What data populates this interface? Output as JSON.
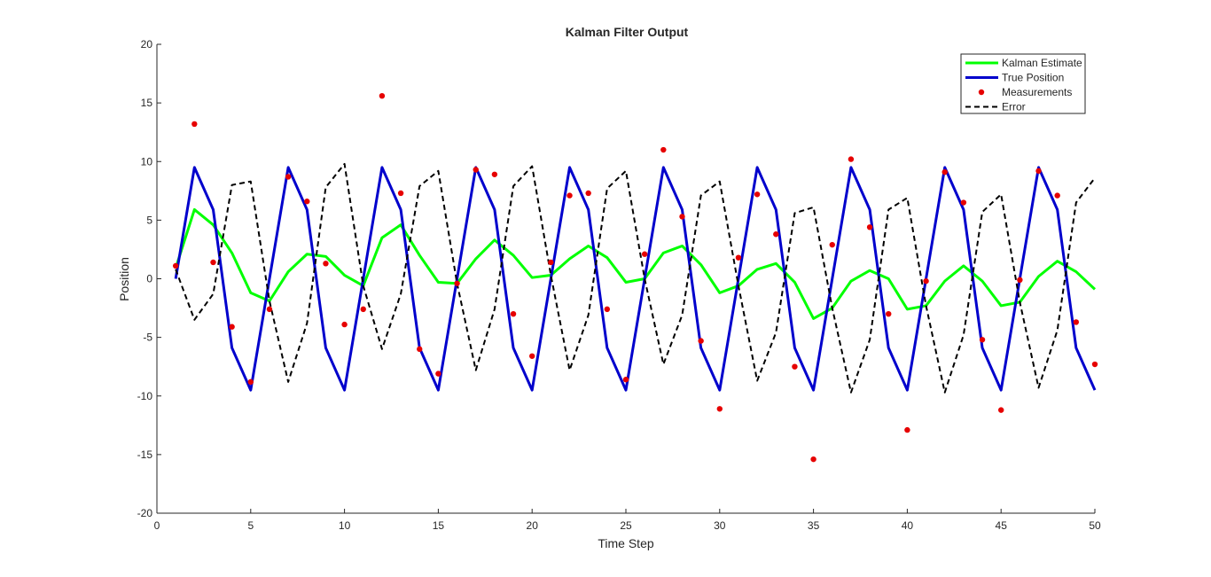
{
  "chart_data": {
    "type": "line",
    "title": "Kalman Filter Output",
    "xlabel": "Time Step",
    "ylabel": "Position",
    "xlim": [
      0,
      50
    ],
    "ylim": [
      -20,
      20
    ],
    "xticks": [
      0,
      5,
      10,
      15,
      20,
      25,
      30,
      35,
      40,
      45,
      50
    ],
    "yticks": [
      -20,
      -15,
      -10,
      -5,
      0,
      5,
      10,
      15,
      20
    ],
    "grid": false,
    "legend_position": "top-right",
    "x": [
      1,
      2,
      3,
      4,
      5,
      6,
      7,
      8,
      9,
      10,
      11,
      12,
      13,
      14,
      15,
      16,
      17,
      18,
      19,
      20,
      21,
      22,
      23,
      24,
      25,
      26,
      27,
      28,
      29,
      30,
      31,
      32,
      33,
      34,
      35,
      36,
      37,
      38,
      39,
      40,
      41,
      42,
      43,
      44,
      45,
      46,
      47,
      48,
      49,
      50
    ],
    "series": [
      {
        "name": "Kalman Estimate",
        "style": "line",
        "color": "#00ff00",
        "values": [
          0.9,
          5.9,
          4.6,
          2.2,
          -1.2,
          -1.9,
          0.6,
          2.1,
          1.9,
          0.3,
          -0.6,
          3.5,
          4.6,
          2.0,
          -0.3,
          -0.4,
          1.7,
          3.3,
          2.0,
          0.1,
          0.3,
          1.7,
          2.8,
          1.8,
          -0.3,
          0.0,
          2.2,
          2.8,
          1.2,
          -1.2,
          -0.6,
          0.8,
          1.3,
          -0.3,
          -3.4,
          -2.5,
          -0.2,
          0.7,
          0.0,
          -2.6,
          -2.3,
          -0.2,
          1.1,
          -0.2,
          -2.3,
          -2.0,
          0.2,
          1.5,
          0.6,
          -0.9
        ]
      },
      {
        "name": "True Position",
        "style": "line",
        "color": "#0000cc",
        "values": [
          0.0,
          9.5,
          5.9,
          -5.9,
          -9.5,
          0.0,
          9.5,
          5.9,
          -5.9,
          -9.5,
          0.0,
          9.5,
          5.9,
          -5.9,
          -9.5,
          0.0,
          9.5,
          5.9,
          -5.9,
          -9.5,
          0.0,
          9.5,
          5.9,
          -5.9,
          -9.5,
          0.0,
          9.5,
          5.9,
          -5.9,
          -9.5,
          0.0,
          9.5,
          5.9,
          -5.9,
          -9.5,
          0.0,
          9.5,
          5.9,
          -5.9,
          -9.5,
          0.0,
          9.5,
          5.9,
          -5.9,
          -9.5,
          0.0,
          9.5,
          5.9,
          -5.9,
          -9.5
        ]
      },
      {
        "name": "Measurements",
        "style": "marker",
        "color": "#e60000",
        "values": [
          1.1,
          13.2,
          1.4,
          -4.1,
          -8.8,
          -2.6,
          8.7,
          6.6,
          1.3,
          -3.9,
          -2.6,
          15.6,
          7.3,
          -6.0,
          -8.1,
          -0.4,
          9.3,
          8.9,
          -3.0,
          -6.6,
          1.4,
          7.1,
          7.3,
          -2.6,
          -8.6,
          2.1,
          11.0,
          5.3,
          -5.3,
          -11.1,
          1.8,
          7.2,
          3.8,
          -7.5,
          -15.4,
          2.9,
          10.2,
          4.4,
          -3.0,
          -12.9,
          -0.2,
          9.1,
          6.5,
          -5.2,
          -11.2,
          -0.1,
          9.2,
          7.1,
          -3.7,
          -7.3
        ]
      },
      {
        "name": "Error",
        "style": "dashed",
        "color": "#000000",
        "values": [
          0.8,
          -3.5,
          -1.3,
          8.0,
          8.3,
          -1.9,
          -8.8,
          -3.8,
          7.8,
          9.8,
          -0.6,
          -6.0,
          -1.3,
          7.9,
          9.2,
          -0.4,
          -7.8,
          -2.6,
          7.9,
          9.6,
          0.3,
          -7.8,
          -3.1,
          7.7,
          9.2,
          0.0,
          -7.3,
          -3.1,
          7.1,
          8.3,
          -0.6,
          -8.7,
          -4.6,
          5.6,
          6.1,
          -2.5,
          -9.7,
          -5.2,
          5.9,
          6.9,
          -2.3,
          -9.7,
          -4.8,
          5.7,
          7.2,
          -2.0,
          -9.3,
          -4.4,
          6.5,
          8.6
        ]
      }
    ]
  }
}
